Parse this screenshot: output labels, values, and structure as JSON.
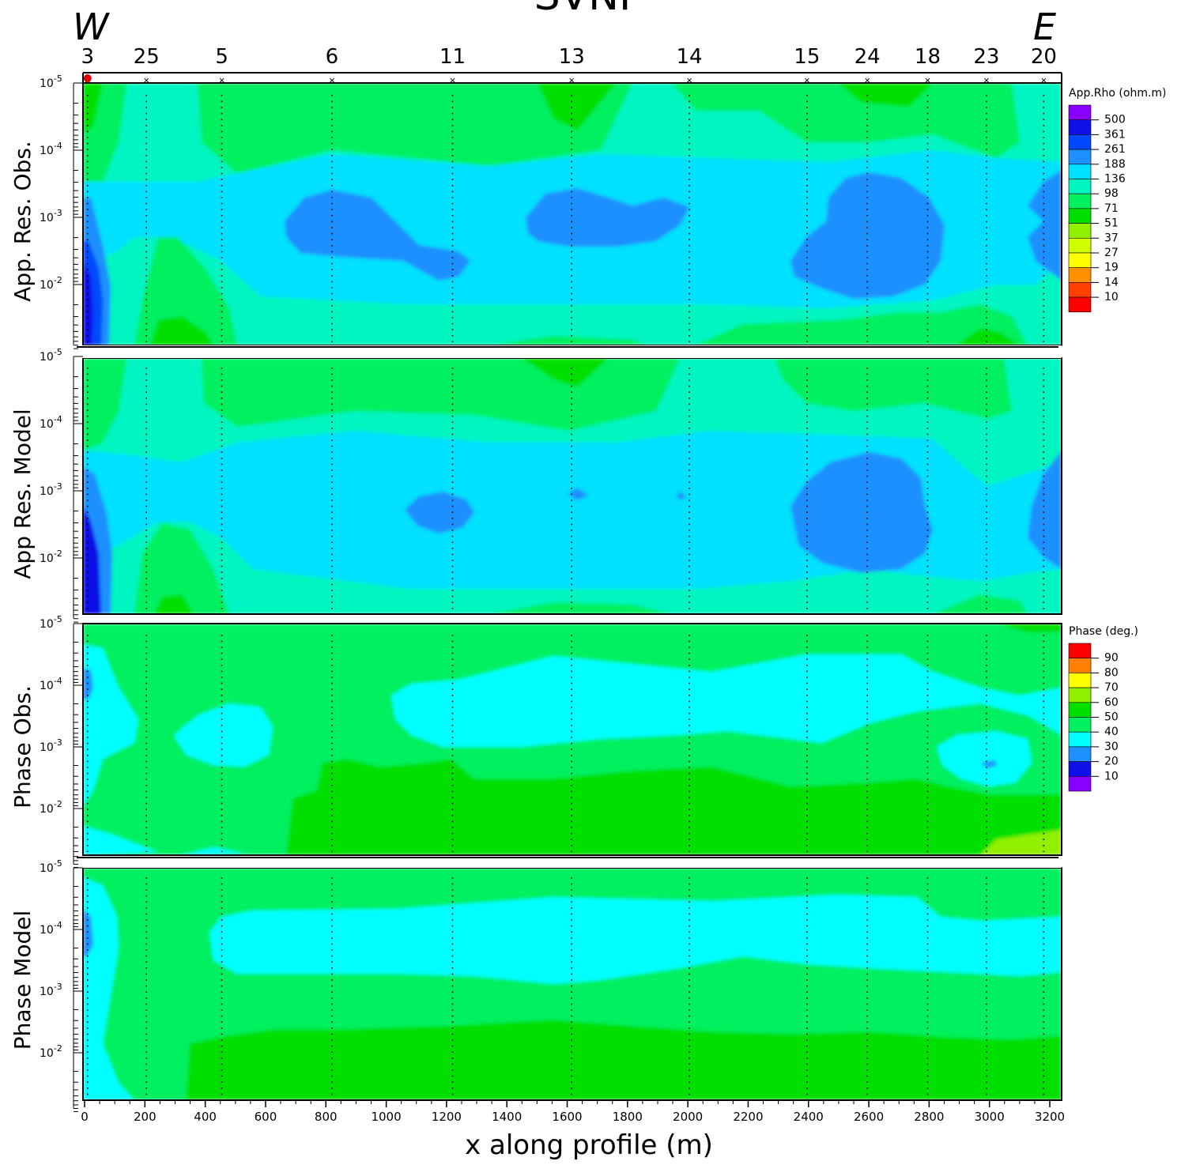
{
  "title": "SVNP",
  "direction": {
    "west": "W",
    "east": "E"
  },
  "colors": {
    "violet": "#8a00ff",
    "blue_dark": "#1010e8",
    "blue": "#0060ff",
    "blue_mid": "#1e90ff",
    "cyan_light": "#00e0ff",
    "cyan": "#00ffff",
    "aqua_green": "#00f0a0",
    "green_light": "#00f060",
    "green": "#00e000",
    "yellow_green": "#90f000",
    "lime": "#d0ff00",
    "yellow": "#ffff00",
    "orange": "#ff9000",
    "orange_red": "#ff5000",
    "red": "#ff0000"
  },
  "chart_data": {
    "type": "heatmap",
    "x_axis": {
      "label": "x along profile (m)",
      "range": [
        0,
        3250
      ],
      "ticks": [
        0,
        200,
        400,
        600,
        800,
        1000,
        1200,
        1400,
        1600,
        1800,
        2000,
        2200,
        2400,
        2600,
        2800,
        3000,
        3200
      ]
    },
    "stations": [
      {
        "name": "3",
        "x": 10
      },
      {
        "name": "25",
        "x": 205
      },
      {
        "name": "5",
        "x": 455
      },
      {
        "name": "6",
        "x": 820
      },
      {
        "name": "11",
        "x": 1220
      },
      {
        "name": "13",
        "x": 1615
      },
      {
        "name": "14",
        "x": 2005
      },
      {
        "name": "15",
        "x": 2395
      },
      {
        "name": "24",
        "x": 2595
      },
      {
        "name": "18",
        "x": 2795
      },
      {
        "name": "23",
        "x": 2990
      },
      {
        "name": "20",
        "x": 3180
      }
    ],
    "y_axis": {
      "type": "log",
      "label_exponents": [
        -5,
        -4,
        -3,
        -2
      ]
    },
    "panels": [
      {
        "name": "App. Res. Obs.",
        "legend": "rho"
      },
      {
        "name": "App Res. Model",
        "legend": null
      },
      {
        "name": "Phase Obs.",
        "legend": "phase"
      },
      {
        "name": "Phase Model",
        "legend": null
      }
    ],
    "legends": {
      "rho": {
        "title": "App.Rho (ohm.m)",
        "levels": [
          "500",
          "361",
          "261",
          "188",
          "136",
          "98",
          "71",
          "51",
          "37",
          "27",
          "19",
          "14",
          "10"
        ],
        "colors": [
          "#8a00ff",
          "#1010e8",
          "#0048ff",
          "#1e90ff",
          "#00e0ff",
          "#00f5c0",
          "#00f060",
          "#00e000",
          "#90f000",
          "#d0ff00",
          "#ffff00",
          "#ff9000",
          "#ff4000",
          "#ff0000"
        ]
      },
      "phase": {
        "title": "Phase (deg.)",
        "levels": [
          "90",
          "80",
          "70",
          "60",
          "50",
          "40",
          "30",
          "20",
          "10"
        ],
        "colors": [
          "#ff0000",
          "#ff8000",
          "#ffff00",
          "#90f000",
          "#00e000",
          "#00f060",
          "#00ffff",
          "#1e90ff",
          "#1010e8",
          "#8a00ff"
        ]
      }
    }
  }
}
